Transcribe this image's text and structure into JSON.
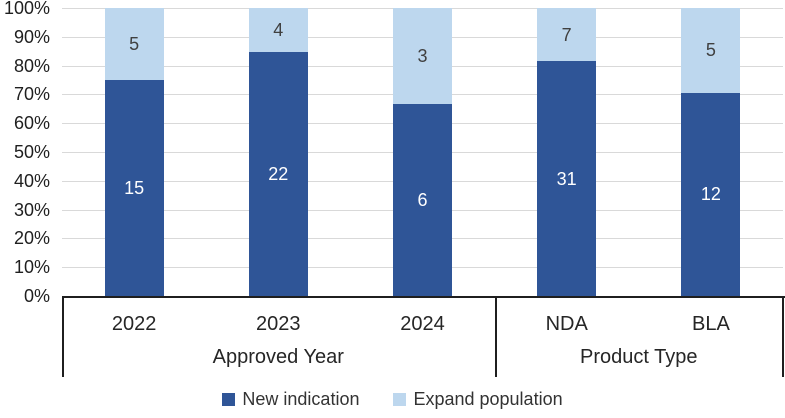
{
  "chart_data": {
    "type": "bar",
    "variant": "stacked-100-percent",
    "title": "",
    "categories": [
      "2022",
      "2023",
      "2024",
      "NDA",
      "BLA"
    ],
    "groups": [
      {
        "label": "Approved Year",
        "categories": [
          "2022",
          "2023",
          "2024"
        ]
      },
      {
        "label": "Product Type",
        "categories": [
          "NDA",
          "BLA"
        ]
      }
    ],
    "series": [
      {
        "name": "New indication",
        "color": "#2f5597",
        "label_color": "#ffffff",
        "values": [
          15,
          22,
          6,
          31,
          12
        ]
      },
      {
        "name": "Expand population",
        "color": "#bdd7ee",
        "label_color": "#404040",
        "values": [
          5,
          4,
          3,
          7,
          5
        ]
      }
    ],
    "y_axis": {
      "tick_labels": [
        "0%",
        "10%",
        "20%",
        "30%",
        "40%",
        "50%",
        "60%",
        "70%",
        "80%",
        "90%",
        "100%"
      ],
      "min": 0,
      "max": 100,
      "unit": "%"
    },
    "grid": true,
    "gridline_color": "#d9d9d9",
    "axis_color": "#1f1f1f",
    "legend_position": "bottom"
  }
}
